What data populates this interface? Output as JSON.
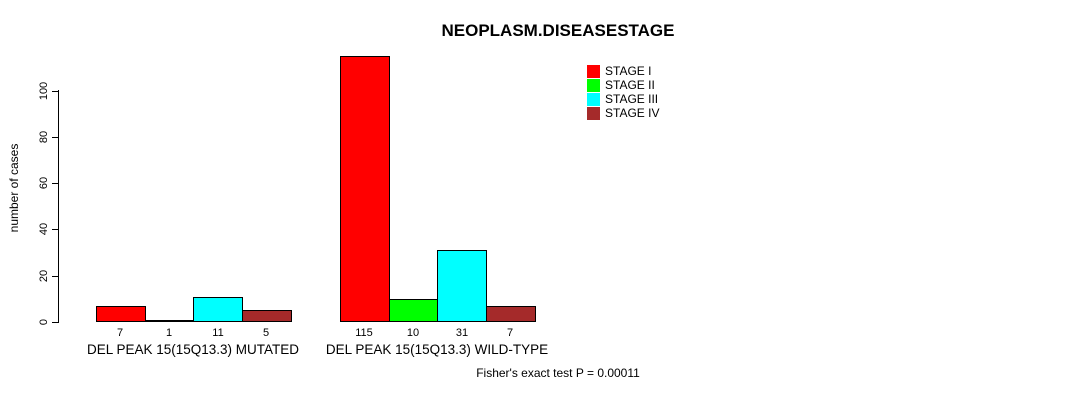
{
  "chart_data": {
    "type": "bar",
    "title": "NEOPLASM.DISEASESTAGE",
    "ylabel": "number of cases",
    "xlabel": "",
    "ylim": [
      0,
      115
    ],
    "yticks": [
      0,
      20,
      40,
      60,
      80,
      100
    ],
    "grid": false,
    "legend_position": "top-right",
    "categories": [
      "DEL PEAK 15(15Q13.3) MUTATED",
      "DEL PEAK 15(15Q13.3) WILD-TYPE"
    ],
    "series": [
      {
        "name": "STAGE I",
        "color": "#FF0000",
        "values": [
          7,
          115
        ]
      },
      {
        "name": "STAGE II",
        "color": "#00FF00",
        "values": [
          1,
          10
        ]
      },
      {
        "name": "STAGE III",
        "color": "#00FFFF",
        "values": [
          11,
          31
        ]
      },
      {
        "name": "STAGE IV",
        "color": "#A52A2A",
        "values": [
          5,
          7
        ]
      }
    ],
    "bar_value_labels": [
      [
        "7",
        "1",
        "11",
        "5"
      ],
      [
        "115",
        "10",
        "31",
        "7"
      ]
    ],
    "annotation": "Fisher's exact test P = 0.00011"
  }
}
